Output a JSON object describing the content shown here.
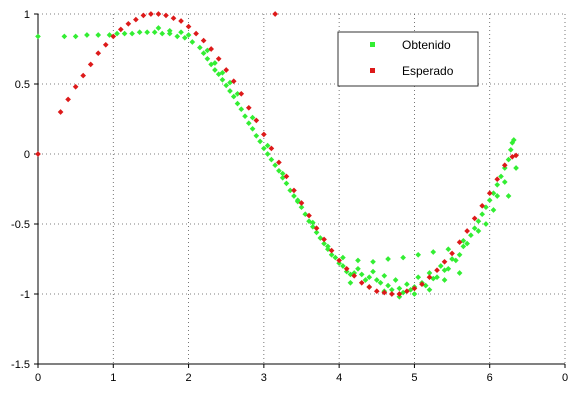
{
  "chart_data": {
    "type": "scatter",
    "title": "",
    "xlabel": "",
    "ylabel": "",
    "xlim": [
      0,
      7
    ],
    "ylim": [
      -1.5,
      1
    ],
    "x_ticks": [
      "0",
      "1",
      "2",
      "3",
      "4",
      "5",
      "6",
      "0"
    ],
    "y_ticks": [
      "1",
      "0.5",
      "0",
      "-0.5",
      "-1",
      "-1.5"
    ],
    "grid": true,
    "legend_position": "top-right",
    "series": [
      {
        "name": "Obtenido",
        "color": "#33ee33",
        "points": [
          [
            0.0,
            0.84
          ],
          [
            0.35,
            0.84
          ],
          [
            0.5,
            0.84
          ],
          [
            0.65,
            0.85
          ],
          [
            0.8,
            0.85
          ],
          [
            0.95,
            0.85
          ],
          [
            1.05,
            0.86
          ],
          [
            1.15,
            0.86
          ],
          [
            1.25,
            0.86
          ],
          [
            1.35,
            0.87
          ],
          [
            1.45,
            0.87
          ],
          [
            1.55,
            0.87
          ],
          [
            1.65,
            0.86
          ],
          [
            1.75,
            0.86
          ],
          [
            1.85,
            0.84
          ],
          [
            1.95,
            0.83
          ],
          [
            2.05,
            0.8
          ],
          [
            2.15,
            0.76
          ],
          [
            2.2,
            0.72
          ],
          [
            2.25,
            0.68
          ],
          [
            2.3,
            0.64
          ],
          [
            2.35,
            0.6
          ],
          [
            2.4,
            0.57
          ],
          [
            2.45,
            0.53
          ],
          [
            2.5,
            0.49
          ],
          [
            2.55,
            0.45
          ],
          [
            2.6,
            0.41
          ],
          [
            2.65,
            0.36
          ],
          [
            2.7,
            0.32
          ],
          [
            2.75,
            0.27
          ],
          [
            2.8,
            0.22
          ],
          [
            2.85,
            0.18
          ],
          [
            2.9,
            0.13
          ],
          [
            2.95,
            0.09
          ],
          [
            3.0,
            0.04
          ],
          [
            3.05,
            0.0
          ],
          [
            3.1,
            -0.04
          ],
          [
            3.15,
            -0.08
          ],
          [
            3.2,
            -0.12
          ],
          [
            3.25,
            -0.17
          ],
          [
            3.3,
            -0.21
          ],
          [
            3.35,
            -0.26
          ],
          [
            3.4,
            -0.3
          ],
          [
            3.45,
            -0.34
          ],
          [
            3.5,
            -0.38
          ],
          [
            3.55,
            -0.43
          ],
          [
            3.6,
            -0.48
          ],
          [
            3.65,
            -0.52
          ],
          [
            3.7,
            -0.56
          ],
          [
            3.75,
            -0.6
          ],
          [
            3.8,
            -0.64
          ],
          [
            3.85,
            -0.68
          ],
          [
            3.9,
            -0.72
          ],
          [
            3.95,
            -0.74
          ],
          [
            4.0,
            -0.78
          ],
          [
            4.05,
            -0.8
          ],
          [
            4.1,
            -0.84
          ],
          [
            4.15,
            -0.86
          ],
          [
            4.2,
            -0.85
          ],
          [
            4.25,
            -0.82
          ],
          [
            4.3,
            -0.86
          ],
          [
            4.35,
            -0.9
          ],
          [
            4.4,
            -0.88
          ],
          [
            4.45,
            -0.84
          ],
          [
            4.5,
            -0.9
          ],
          [
            4.55,
            -0.92
          ],
          [
            4.6,
            -0.87
          ],
          [
            4.65,
            -0.94
          ],
          [
            4.7,
            -0.97
          ],
          [
            4.75,
            -0.9
          ],
          [
            4.8,
            -0.96
          ],
          [
            4.85,
            -0.99
          ],
          [
            4.9,
            -0.93
          ],
          [
            4.95,
            -0.97
          ],
          [
            5.0,
            -0.95
          ],
          [
            5.05,
            -0.88
          ],
          [
            5.1,
            -0.92
          ],
          [
            5.15,
            -0.94
          ],
          [
            5.2,
            -0.85
          ],
          [
            5.25,
            -0.89
          ],
          [
            5.3,
            -0.88
          ],
          [
            5.35,
            -0.8
          ],
          [
            5.4,
            -0.83
          ],
          [
            5.45,
            -0.82
          ],
          [
            5.5,
            -0.75
          ],
          [
            5.55,
            -0.76
          ],
          [
            5.6,
            -0.72
          ],
          [
            5.65,
            -0.66
          ],
          [
            5.7,
            -0.64
          ],
          [
            5.75,
            -0.58
          ],
          [
            5.8,
            -0.53
          ],
          [
            5.85,
            -0.48
          ],
          [
            5.9,
            -0.43
          ],
          [
            5.95,
            -0.38
          ],
          [
            6.0,
            -0.33
          ],
          [
            6.05,
            -0.28
          ],
          [
            6.1,
            -0.22
          ],
          [
            6.15,
            -0.16
          ],
          [
            6.2,
            -0.1
          ],
          [
            6.25,
            -0.04
          ],
          [
            6.28,
            0.03
          ],
          [
            6.3,
            0.08
          ],
          [
            6.32,
            0.1
          ],
          [
            4.05,
            -0.74
          ],
          [
            4.25,
            -0.76
          ],
          [
            4.45,
            -0.77
          ],
          [
            4.65,
            -0.75
          ],
          [
            4.85,
            -0.74
          ],
          [
            5.05,
            -0.72
          ],
          [
            5.25,
            -0.7
          ],
          [
            5.45,
            -0.68
          ],
          [
            5.65,
            -0.62
          ],
          [
            4.15,
            -0.92
          ],
          [
            4.4,
            -0.95
          ],
          [
            4.6,
            -0.98
          ],
          [
            4.8,
            -1.02
          ],
          [
            5.0,
            -1.0
          ],
          [
            5.2,
            -0.97
          ],
          [
            5.4,
            -0.9
          ],
          [
            5.6,
            -0.85
          ],
          [
            2.25,
            0.74
          ],
          [
            2.35,
            0.65
          ],
          [
            2.45,
            0.58
          ],
          [
            2.55,
            0.51
          ],
          [
            2.65,
            0.43
          ],
          [
            2.85,
            0.26
          ],
          [
            3.05,
            0.06
          ],
          [
            3.25,
            -0.14
          ],
          [
            3.45,
            -0.33
          ],
          [
            3.65,
            -0.49
          ],
          [
            3.85,
            -0.66
          ],
          [
            6.35,
            -0.1
          ],
          [
            6.2,
            -0.2
          ],
          [
            6.1,
            -0.3
          ],
          [
            6.25,
            -0.3
          ],
          [
            6.05,
            -0.4
          ],
          [
            5.95,
            -0.5
          ],
          [
            5.85,
            -0.55
          ],
          [
            1.6,
            0.9
          ],
          [
            1.75,
            0.88
          ],
          [
            1.9,
            0.87
          ],
          [
            2.0,
            0.85
          ]
        ]
      },
      {
        "name": "Esperado",
        "color": "#dd1a1a",
        "points": [
          [
            0.0,
            0.0
          ],
          [
            3.15,
            1.0
          ],
          [
            0.3,
            0.3
          ],
          [
            0.4,
            0.39
          ],
          [
            0.5,
            0.48
          ],
          [
            0.6,
            0.56
          ],
          [
            0.7,
            0.64
          ],
          [
            0.8,
            0.72
          ],
          [
            0.9,
            0.78
          ],
          [
            1.0,
            0.84
          ],
          [
            1.1,
            0.89
          ],
          [
            1.2,
            0.93
          ],
          [
            1.3,
            0.96
          ],
          [
            1.4,
            0.99
          ],
          [
            1.5,
            1.0
          ],
          [
            1.6,
            1.0
          ],
          [
            1.7,
            0.99
          ],
          [
            1.8,
            0.97
          ],
          [
            1.9,
            0.95
          ],
          [
            2.0,
            0.91
          ],
          [
            2.1,
            0.86
          ],
          [
            2.2,
            0.81
          ],
          [
            2.3,
            0.75
          ],
          [
            2.4,
            0.68
          ],
          [
            2.5,
            0.6
          ],
          [
            2.6,
            0.52
          ],
          [
            2.7,
            0.43
          ],
          [
            2.8,
            0.33
          ],
          [
            2.9,
            0.24
          ],
          [
            3.0,
            0.14
          ],
          [
            3.1,
            0.04
          ],
          [
            3.2,
            -0.06
          ],
          [
            3.3,
            -0.16
          ],
          [
            3.4,
            -0.26
          ],
          [
            3.5,
            -0.35
          ],
          [
            3.6,
            -0.44
          ],
          [
            3.7,
            -0.53
          ],
          [
            3.8,
            -0.61
          ],
          [
            3.9,
            -0.69
          ],
          [
            4.0,
            -0.76
          ],
          [
            4.1,
            -0.82
          ],
          [
            4.2,
            -0.87
          ],
          [
            4.3,
            -0.92
          ],
          [
            4.4,
            -0.95
          ],
          [
            4.5,
            -0.98
          ],
          [
            4.6,
            -0.99
          ],
          [
            4.7,
            -1.0
          ],
          [
            4.8,
            -1.0
          ],
          [
            4.9,
            -0.98
          ],
          [
            5.0,
            -0.96
          ],
          [
            5.1,
            -0.93
          ],
          [
            5.2,
            -0.88
          ],
          [
            5.3,
            -0.83
          ],
          [
            5.4,
            -0.77
          ],
          [
            5.5,
            -0.71
          ],
          [
            5.6,
            -0.63
          ],
          [
            5.7,
            -0.55
          ],
          [
            5.8,
            -0.46
          ],
          [
            5.9,
            -0.37
          ],
          [
            6.0,
            -0.28
          ],
          [
            6.1,
            -0.18
          ],
          [
            6.2,
            -0.08
          ],
          [
            6.3,
            -0.02
          ],
          [
            6.35,
            -0.01
          ]
        ]
      }
    ]
  }
}
